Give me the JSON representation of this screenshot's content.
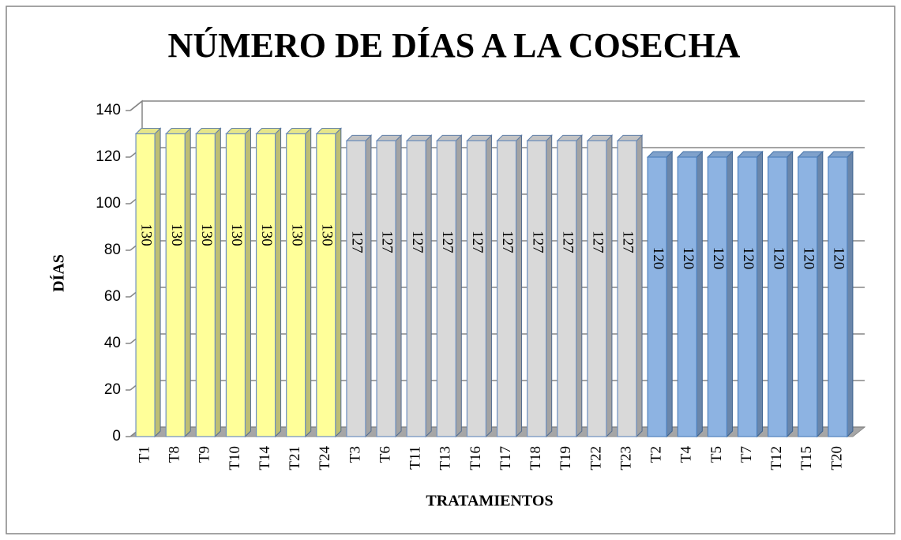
{
  "chart_data": {
    "type": "bar3d",
    "title": "NÚMERO DE DÍAS A LA COSECHA",
    "x_label": "TRATAMIENTOS",
    "y_label": "DÍAS",
    "categories": [
      "T1",
      "T8",
      "T9",
      "T10",
      "T14",
      "T21",
      "T24",
      "T3",
      "T6",
      "T11",
      "T13",
      "T16",
      "T17",
      "T18",
      "T19",
      "T22",
      "T23",
      "T2",
      "T4",
      "T5",
      "T7",
      "T12",
      "T15",
      "T20"
    ],
    "values": [
      130,
      130,
      130,
      130,
      130,
      130,
      130,
      127,
      127,
      127,
      127,
      127,
      127,
      127,
      127,
      127,
      127,
      120,
      120,
      120,
      120,
      120,
      120,
      120
    ],
    "colors": [
      "#ffff99",
      "#ffff99",
      "#ffff99",
      "#ffff99",
      "#ffff99",
      "#ffff99",
      "#ffff99",
      "#d9d9d9",
      "#d9d9d9",
      "#d9d9d9",
      "#d9d9d9",
      "#d9d9d9",
      "#d9d9d9",
      "#d9d9d9",
      "#d9d9d9",
      "#d9d9d9",
      "#d9d9d9",
      "#8db3e2",
      "#8db3e2",
      "#8db3e2",
      "#8db3e2",
      "#8db3e2",
      "#8db3e2",
      "#8db3e2"
    ],
    "ylim": [
      0,
      140
    ],
    "yticks": [
      0,
      20,
      40,
      60,
      80,
      100,
      120,
      140
    ],
    "grid": true,
    "data_labels": true
  }
}
